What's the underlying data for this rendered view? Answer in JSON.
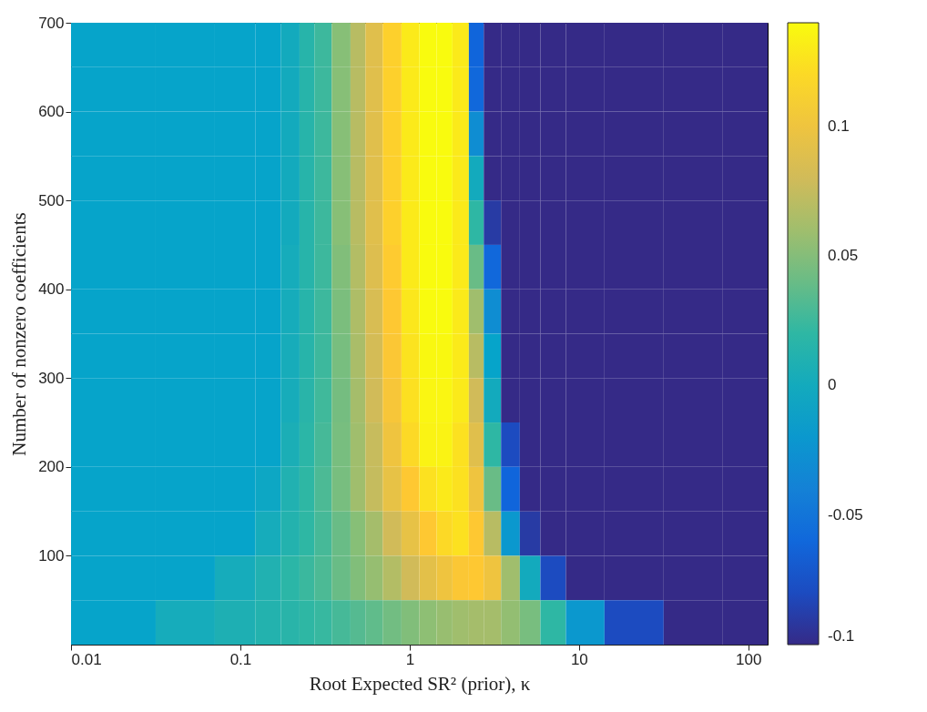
{
  "chart_data": {
    "type": "heatmap",
    "xlabel": "Root Expected SR² (prior), κ",
    "ylabel": "Number of nonzero coefficients",
    "x": [
      0.02,
      0.05,
      0.1,
      0.15,
      0.2,
      0.25,
      0.3,
      0.4,
      0.5,
      0.6,
      0.8,
      1,
      1.3,
      1.6,
      2,
      2.5,
      3,
      4,
      5,
      7,
      10,
      20,
      50,
      100
    ],
    "cells": [
      [
        -0.01,
        -0.01,
        -0.01,
        -0.01,
        0.0,
        0.015,
        0.025,
        0.05,
        0.07,
        0.09,
        0.115,
        0.13,
        0.14,
        0.14,
        0.13,
        -0.063,
        -0.1,
        -0.1,
        -0.1,
        -0.1,
        -0.1,
        -0.1,
        -0.1,
        -0.1
      ],
      [
        -0.01,
        -0.01,
        -0.01,
        -0.01,
        0.0,
        0.015,
        0.025,
        0.05,
        0.07,
        0.09,
        0.115,
        0.13,
        0.14,
        0.14,
        0.13,
        -0.06,
        -0.1,
        -0.1,
        -0.1,
        -0.1,
        -0.1,
        -0.1,
        -0.1,
        -0.1
      ],
      [
        -0.01,
        -0.01,
        -0.01,
        -0.01,
        0.0,
        0.015,
        0.025,
        0.05,
        0.07,
        0.09,
        0.115,
        0.13,
        0.14,
        0.14,
        0.13,
        -0.03,
        -0.1,
        -0.1,
        -0.1,
        -0.1,
        -0.1,
        -0.1,
        -0.1,
        -0.1
      ],
      [
        -0.01,
        -0.01,
        -0.01,
        -0.01,
        0.0,
        0.015,
        0.025,
        0.05,
        0.07,
        0.09,
        0.115,
        0.13,
        0.14,
        0.14,
        0.13,
        0.0,
        -0.1,
        -0.1,
        -0.1,
        -0.1,
        -0.1,
        -0.1,
        -0.1,
        -0.1
      ],
      [
        -0.01,
        -0.01,
        -0.01,
        -0.01,
        0.0,
        0.015,
        0.025,
        0.05,
        0.07,
        0.09,
        0.115,
        0.13,
        0.14,
        0.14,
        0.13,
        0.02,
        -0.09,
        -0.1,
        -0.1,
        -0.1,
        -0.1,
        -0.1,
        -0.1,
        -0.1
      ],
      [
        -0.01,
        -0.01,
        -0.01,
        -0.01,
        0.002,
        0.015,
        0.025,
        0.048,
        0.068,
        0.088,
        0.112,
        0.13,
        0.14,
        0.14,
        0.13,
        0.04,
        -0.06,
        -0.1,
        -0.1,
        -0.1,
        -0.1,
        -0.1,
        -0.1,
        -0.1
      ],
      [
        -0.01,
        -0.01,
        -0.01,
        -0.01,
        0.002,
        0.015,
        0.025,
        0.046,
        0.066,
        0.085,
        0.11,
        0.128,
        0.14,
        0.14,
        0.13,
        0.06,
        -0.03,
        -0.1,
        -0.1,
        -0.1,
        -0.1,
        -0.1,
        -0.1,
        -0.1
      ],
      [
        -0.01,
        -0.01,
        -0.01,
        -0.01,
        0.003,
        0.015,
        0.025,
        0.045,
        0.064,
        0.082,
        0.108,
        0.126,
        0.138,
        0.138,
        0.13,
        0.07,
        -0.01,
        -0.1,
        -0.1,
        -0.1,
        -0.1,
        -0.1,
        -0.1,
        -0.1
      ],
      [
        -0.01,
        -0.01,
        -0.01,
        -0.01,
        0.003,
        0.016,
        0.026,
        0.044,
        0.062,
        0.08,
        0.105,
        0.124,
        0.137,
        0.137,
        0.13,
        0.08,
        0.0,
        -0.1,
        -0.1,
        -0.1,
        -0.1,
        -0.1,
        -0.1,
        -0.1
      ],
      [
        -0.01,
        -0.01,
        -0.01,
        -0.01,
        0.006,
        0.018,
        0.028,
        0.045,
        0.06,
        0.076,
        0.1,
        0.12,
        0.135,
        0.135,
        0.125,
        0.09,
        0.02,
        -0.08,
        -0.1,
        -0.1,
        -0.1,
        -0.1,
        -0.1,
        -0.1
      ],
      [
        -0.01,
        -0.01,
        -0.01,
        -0.005,
        0.01,
        0.02,
        0.03,
        0.045,
        0.06,
        0.075,
        0.095,
        0.11,
        0.125,
        0.13,
        0.125,
        0.1,
        0.04,
        -0.063,
        -0.1,
        -0.1,
        -0.1,
        -0.1,
        -0.1,
        -0.1
      ],
      [
        -0.01,
        -0.01,
        -0.01,
        0.002,
        0.012,
        0.02,
        0.028,
        0.04,
        0.05,
        0.062,
        0.08,
        0.095,
        0.11,
        0.12,
        0.125,
        0.11,
        0.07,
        -0.02,
        -0.09,
        -0.1,
        -0.1,
        -0.1,
        -0.1,
        -0.1
      ],
      [
        -0.01,
        -0.01,
        0.002,
        0.01,
        0.018,
        0.024,
        0.03,
        0.04,
        0.048,
        0.056,
        0.068,
        0.08,
        0.092,
        0.1,
        0.108,
        0.11,
        0.1,
        0.06,
        0.0,
        -0.08,
        -0.1,
        -0.1,
        -0.1,
        -0.1
      ],
      [
        -0.01,
        0.002,
        0.008,
        0.012,
        0.016,
        0.02,
        0.023,
        0.028,
        0.033,
        0.037,
        0.043,
        0.048,
        0.053,
        0.057,
        0.06,
        0.062,
        0.062,
        0.055,
        0.045,
        0.02,
        -0.02,
        -0.08,
        -0.1,
        -0.1
      ]
    ],
    "log": "x",
    "xlim": [
      0.01,
      130
    ],
    "xticks": [
      0.01,
      0.1,
      1,
      10,
      100
    ],
    "ylim": [
      0,
      700
    ],
    "yticks": [
      100,
      200,
      300,
      400,
      500,
      600,
      700
    ],
    "clim": [
      -0.1,
      0.14
    ],
    "cticks": [
      -0.1,
      -0.05,
      0,
      0.05,
      0.1
    ]
  }
}
